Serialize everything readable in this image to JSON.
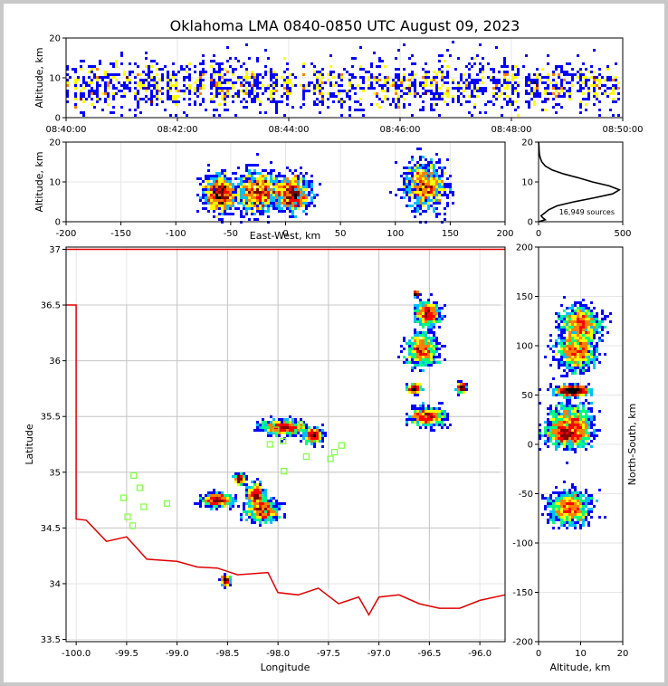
{
  "title": "Oklahoma LMA 0840-0850 UTC August 09, 2023",
  "colors": {
    "frame": "#c8c8c8",
    "state_border": "#e00000",
    "county_border": "#c8c8c8",
    "station_marker": "#7fff3f",
    "histogram_line": "#000000",
    "density_scale": [
      "#0000ff",
      "#00bfff",
      "#00ff7f",
      "#ffff00",
      "#ff7f00",
      "#ff0000",
      "#7f0000",
      "#000000"
    ]
  },
  "chart_data": [
    {
      "type": "scatter",
      "name_id": "time-height",
      "xlabel": "",
      "ylabel": "Altitude, km",
      "xlim": [
        "08:40:00",
        "08:50:00"
      ],
      "xticks": [
        "08:40:00",
        "08:42:00",
        "08:44:00",
        "08:46:00",
        "08:48:00",
        "08:50:00"
      ],
      "ylim": [
        0,
        20
      ],
      "yticks": [
        0,
        10,
        20
      ],
      "grid": true
    },
    {
      "type": "scatter",
      "name_id": "east-west-altitude",
      "xlabel": "East-West, km",
      "ylabel": "Altitude, km",
      "xlim": [
        -200,
        200
      ],
      "xticks": [
        -200,
        -150,
        -100,
        -50,
        0,
        50,
        100,
        150,
        200
      ],
      "ylim": [
        0,
        20
      ],
      "yticks": [
        0,
        10,
        20
      ],
      "grid": true,
      "clusters": [
        {
          "x": -60,
          "y": 7,
          "sx": 7,
          "sy": 2.3
        },
        {
          "x": -27,
          "y": 7.5,
          "sx": 10,
          "sy": 2.5
        },
        {
          "x": 5,
          "y": 7,
          "sx": 9,
          "sy": 2
        },
        {
          "x": 127,
          "y": 9,
          "sx": 10,
          "sy": 3
        }
      ]
    },
    {
      "type": "line",
      "name_id": "altitude-histogram",
      "xlabel": "",
      "ylabel": "",
      "xlim": [
        0,
        500
      ],
      "xticks": [
        0,
        500
      ],
      "ylim": [
        0,
        20
      ],
      "yticks": [
        0,
        10,
        20
      ],
      "annotation": "16,949 sources",
      "series": [
        {
          "values": [
            [
              0,
              0
            ],
            [
              40,
              0.5
            ],
            [
              25,
              1
            ],
            [
              15,
              1.5
            ],
            [
              30,
              2
            ],
            [
              60,
              3
            ],
            [
              110,
              4
            ],
            [
              210,
              5
            ],
            [
              330,
              6
            ],
            [
              440,
              7
            ],
            [
              480,
              8
            ],
            [
              420,
              9
            ],
            [
              320,
              10
            ],
            [
              240,
              11
            ],
            [
              150,
              12
            ],
            [
              80,
              13
            ],
            [
              40,
              14
            ],
            [
              20,
              15
            ],
            [
              10,
              16
            ],
            [
              5,
              17
            ],
            [
              3,
              18
            ],
            [
              2,
              19
            ],
            [
              0,
              20
            ]
          ]
        }
      ]
    },
    {
      "type": "scatter",
      "name_id": "plan-view-map",
      "xlabel": "Longitude",
      "ylabel": "Latitude",
      "xlim": [
        -100.1,
        -95.75
      ],
      "xticks": [
        -100.0,
        -99.5,
        -99.0,
        -98.5,
        -98.0,
        -97.5,
        -97.0,
        -96.5,
        -96.0
      ],
      "ylim": [
        33.48,
        37.02
      ],
      "yticks": [
        33.5,
        34.0,
        34.5,
        35.0,
        35.5,
        36.0,
        36.5,
        37.0
      ],
      "grid": true,
      "clusters": [
        {
          "x": -96.52,
          "y": 36.42,
          "sx": 0.06,
          "sy": 0.05
        },
        {
          "x": -96.57,
          "y": 36.1,
          "sx": 0.07,
          "sy": 0.07
        },
        {
          "x": -96.52,
          "y": 35.5,
          "sx": 0.08,
          "sy": 0.04
        },
        {
          "x": -96.65,
          "y": 35.75,
          "sx": 0.03,
          "sy": 0.02
        },
        {
          "x": -96.18,
          "y": 35.76,
          "sx": 0.02,
          "sy": 0.02
        },
        {
          "x": -97.95,
          "y": 35.4,
          "sx": 0.1,
          "sy": 0.03
        },
        {
          "x": -97.65,
          "y": 35.33,
          "sx": 0.04,
          "sy": 0.03
        },
        {
          "x": -98.6,
          "y": 34.75,
          "sx": 0.07,
          "sy": 0.03
        },
        {
          "x": -98.15,
          "y": 34.66,
          "sx": 0.07,
          "sy": 0.05
        },
        {
          "x": -98.22,
          "y": 34.8,
          "sx": 0.04,
          "sy": 0.04
        },
        {
          "x": -98.38,
          "y": 34.94,
          "sx": 0.02,
          "sy": 0.02
        },
        {
          "x": -98.52,
          "y": 34.03,
          "sx": 0.02,
          "sy": 0.02
        },
        {
          "x": -96.63,
          "y": 36.6,
          "sx": 0.01,
          "sy": 0.01
        }
      ],
      "stations": [
        [
          -98.08,
          35.25
        ],
        [
          -98.02,
          35.38
        ],
        [
          -97.95,
          35.28
        ],
        [
          -97.78,
          35.43
        ],
        [
          -97.72,
          35.14
        ],
        [
          -97.48,
          35.12
        ],
        [
          -97.44,
          35.18
        ],
        [
          -97.37,
          35.24
        ],
        [
          -97.94,
          35.01
        ],
        [
          -99.43,
          34.97
        ],
        [
          -99.37,
          34.86
        ],
        [
          -99.33,
          34.69
        ],
        [
          -99.53,
          34.77
        ],
        [
          -99.49,
          34.6
        ],
        [
          -99.44,
          34.52
        ],
        [
          -99.1,
          34.72
        ]
      ]
    },
    {
      "type": "scatter",
      "name_id": "altitude-north-south",
      "xlabel": "Altitude, km",
      "ylabel": "North-South, km",
      "xlim": [
        0,
        20
      ],
      "xticks": [
        0,
        10,
        20
      ],
      "ylim": [
        -200,
        200
      ],
      "yticks": [
        -200,
        -150,
        -100,
        -50,
        0,
        50,
        100,
        150,
        200
      ],
      "grid": true,
      "clusters": [
        {
          "x": 10,
          "y": 122,
          "sx": 2.3,
          "sy": 8
        },
        {
          "x": 9,
          "y": 94,
          "sx": 2.2,
          "sy": 9
        },
        {
          "x": 8,
          "y": 54,
          "sx": 1.8,
          "sy": 2.5
        },
        {
          "x": 7.5,
          "y": 22,
          "sx": 2.5,
          "sy": 10
        },
        {
          "x": 7,
          "y": 10,
          "sx": 2.5,
          "sy": 6
        },
        {
          "x": 7.5,
          "y": -65,
          "sx": 2.4,
          "sy": 8
        }
      ]
    }
  ]
}
